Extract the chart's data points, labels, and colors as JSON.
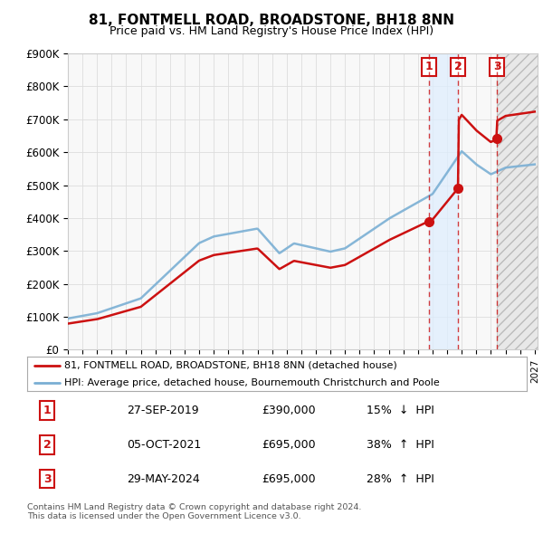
{
  "title": "81, FONTMELL ROAD, BROADSTONE, BH18 8NN",
  "subtitle": "Price paid vs. HM Land Registry's House Price Index (HPI)",
  "ylim": [
    0,
    900000
  ],
  "yticks": [
    0,
    100000,
    200000,
    300000,
    400000,
    500000,
    600000,
    700000,
    800000,
    900000
  ],
  "ytick_labels": [
    "£0",
    "£100K",
    "£200K",
    "£300K",
    "£400K",
    "£500K",
    "£600K",
    "£700K",
    "£800K",
    "£900K"
  ],
  "xlim_start": 1995.0,
  "xlim_end": 2027.2,
  "hpi_color": "#7aafd4",
  "property_color": "#cc1111",
  "background_color": "#ffffff",
  "plot_bg_color": "#f8f8f8",
  "grid_color": "#dddddd",
  "transactions": [
    {
      "id": 1,
      "date": "27-SEP-2019",
      "price": 390000,
      "pct": "15%",
      "dir": "↓",
      "x": 2019.74
    },
    {
      "id": 2,
      "date": "05-OCT-2021",
      "price": 695000,
      "pct": "38%",
      "dir": "↑",
      "x": 2021.76
    },
    {
      "id": 3,
      "date": "29-MAY-2024",
      "price": 695000,
      "pct": "28%",
      "dir": "↑",
      "x": 2024.41
    }
  ],
  "legend_line1": "81, FONTMELL ROAD, BROADSTONE, BH18 8NN (detached house)",
  "legend_line2": "HPI: Average price, detached house, Bournemouth Christchurch and Poole",
  "footnote1": "Contains HM Land Registry data © Crown copyright and database right 2024.",
  "footnote2": "This data is licensed under the Open Government Licence v3.0.",
  "shade_color": "#ddeeff",
  "future_shade": "#eeeeee"
}
